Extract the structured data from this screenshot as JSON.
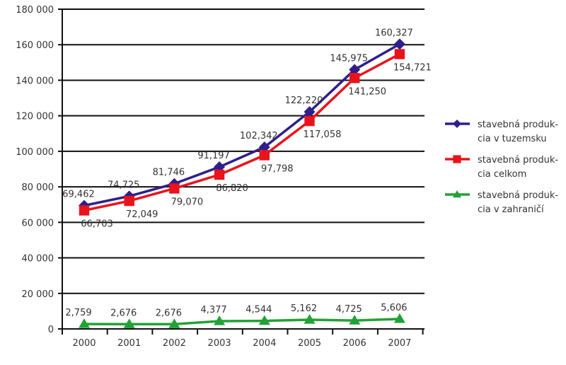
{
  "chart_data": {
    "type": "line",
    "title": "",
    "xlabel": "",
    "ylabel": "",
    "categories": [
      "2000",
      "2001",
      "2002",
      "2003",
      "2004",
      "2005",
      "2006",
      "2007"
    ],
    "ylim": [
      0,
      180000
    ],
    "yticks": [
      0,
      20000,
      40000,
      60000,
      80000,
      100000,
      120000,
      140000,
      160000,
      180000
    ],
    "ytick_labels": [
      "0",
      "20 000",
      "40 000",
      "60 000",
      "80 000",
      "100 000",
      "120 000",
      "140 000",
      "160 000",
      "180 000"
    ],
    "grid": "horizontal",
    "legend_position": "right",
    "series": [
      {
        "name": "stavebná produkcia v tuzemsku",
        "legend_lines": [
          "stavebná produk-",
          "cia v tuzemsku"
        ],
        "color": "#2e1f8c",
        "marker": "diamond",
        "label_pos": "above",
        "values": [
          69462,
          74725,
          81746,
          91197,
          102342,
          122220,
          145975,
          160327
        ],
        "labels": [
          "69,462",
          "74,725",
          "81,746",
          "91,197",
          "102,342",
          "122,220",
          "145,975",
          "160,327"
        ]
      },
      {
        "name": "stavebná produkcia celkom",
        "legend_lines": [
          "stavebná produk-",
          "cia celkom"
        ],
        "color": "#e8141b",
        "marker": "square",
        "label_pos": "below",
        "values": [
          66703,
          72049,
          79070,
          86820,
          97798,
          117058,
          141250,
          154721
        ],
        "labels": [
          "66,703",
          "72,049",
          "79,070",
          "86,820",
          "97,798",
          "117,058",
          "141,250",
          "154,721"
        ]
      },
      {
        "name": "stavebná produkcia v zahraničí",
        "legend_lines": [
          "stavebná produk-",
          "cia v zahraničí"
        ],
        "color": "#22a236",
        "marker": "triangle",
        "label_pos": "above",
        "values": [
          2759,
          2676,
          2676,
          4377,
          4544,
          5162,
          4725,
          5606
        ],
        "labels": [
          "2,759",
          "2,676",
          "2,676",
          "4,377",
          "4,544",
          "5,162",
          "4,725",
          "5,606"
        ]
      }
    ]
  }
}
